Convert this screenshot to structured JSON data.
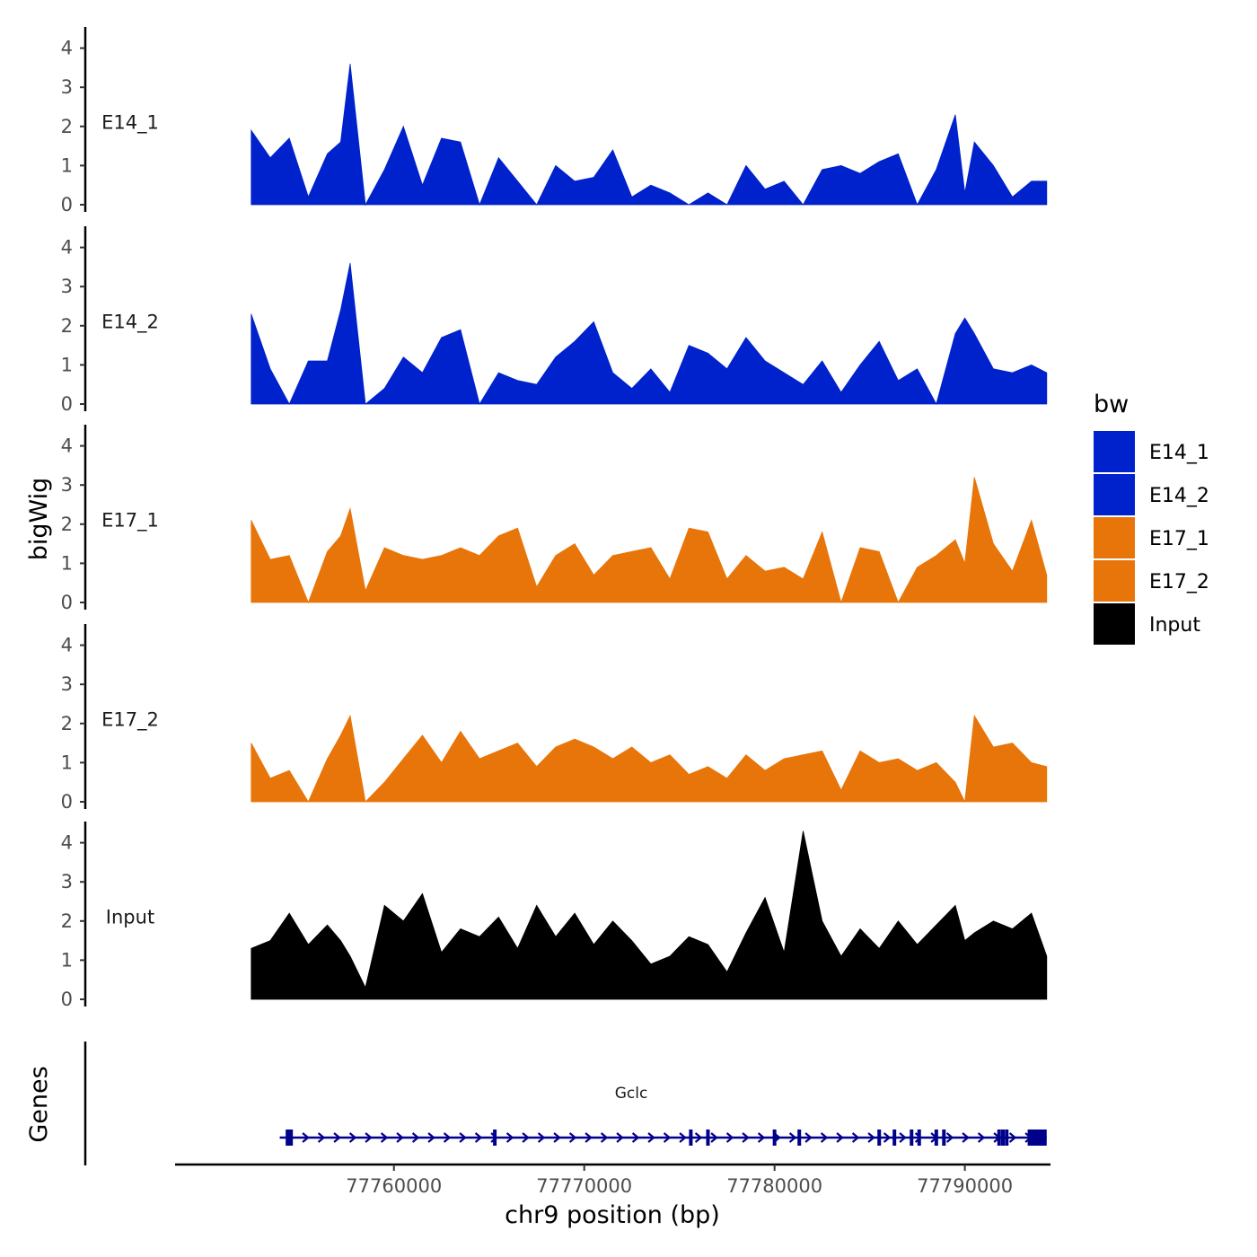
{
  "chart_data": {
    "type": "area",
    "title": "",
    "xlabel": "chr9 position (bp)",
    "ylabel": "bigWig",
    "genes_label": "Genes",
    "x_range": [
      77748500,
      77794500
    ],
    "x_ticks": [
      77760000,
      77770000,
      77780000,
      77790000
    ],
    "x_tick_labels": [
      "77760000",
      "77770000",
      "77780000",
      "77790000"
    ],
    "ylim": [
      0,
      4.5
    ],
    "y_ticks": [
      0,
      1,
      2,
      3,
      4
    ],
    "y_tick_labels": [
      "0",
      "1",
      "2",
      "3",
      "4"
    ],
    "region": [
      77752500,
      77794300
    ],
    "legend": {
      "title": "bw",
      "position": "right",
      "entries": [
        {
          "label": "E14_1",
          "color": "#0022CC"
        },
        {
          "label": "E14_2",
          "color": "#0022CC"
        },
        {
          "label": "E17_1",
          "color": "#E8750A"
        },
        {
          "label": "E17_2",
          "color": "#E8750A"
        },
        {
          "label": "Input",
          "color": "#000000"
        }
      ]
    },
    "series": [
      {
        "name": "E14_1",
        "color": "#0022CC",
        "x": [
          77752500,
          77753500,
          77754500,
          77755500,
          77756500,
          77757200,
          77757700,
          77758500,
          77759500,
          77760500,
          77761500,
          77762500,
          77763500,
          77764500,
          77765500,
          77766500,
          77767500,
          77768500,
          77769500,
          77770500,
          77771500,
          77772500,
          77773500,
          77774500,
          77775500,
          77776500,
          77777500,
          77778500,
          77779500,
          77780500,
          77781500,
          77782500,
          77783500,
          77784500,
          77785500,
          77786500,
          77787500,
          77788500,
          77789500,
          77790000,
          77790500,
          77791500,
          77792500,
          77793500,
          77794300
        ],
        "values": [
          1.9,
          1.2,
          1.7,
          0.2,
          1.3,
          1.6,
          3.6,
          0.0,
          0.9,
          2.0,
          0.5,
          1.7,
          1.6,
          0.0,
          1.2,
          0.6,
          0.0,
          1.0,
          0.6,
          0.7,
          1.4,
          0.2,
          0.5,
          0.3,
          0.0,
          0.3,
          0.0,
          1.0,
          0.4,
          0.6,
          0.0,
          0.9,
          1.0,
          0.8,
          1.1,
          1.3,
          0.0,
          0.9,
          2.3,
          0.3,
          1.6,
          1.0,
          0.2,
          0.6,
          0.6
        ]
      },
      {
        "name": "E14_2",
        "color": "#0022CC",
        "x": [
          77752500,
          77753500,
          77754500,
          77755500,
          77756500,
          77757200,
          77757700,
          77758500,
          77759500,
          77760500,
          77761500,
          77762500,
          77763500,
          77764500,
          77765500,
          77766500,
          77767500,
          77768500,
          77769500,
          77770500,
          77771500,
          77772500,
          77773500,
          77774500,
          77775500,
          77776500,
          77777500,
          77778500,
          77779500,
          77780500,
          77781500,
          77782500,
          77783500,
          77784500,
          77785500,
          77786500,
          77787500,
          77788500,
          77789500,
          77790000,
          77790500,
          77791500,
          77792500,
          77793500,
          77794300
        ],
        "values": [
          2.3,
          0.9,
          0.0,
          1.1,
          1.1,
          2.4,
          3.6,
          0.0,
          0.4,
          1.2,
          0.8,
          1.7,
          1.9,
          0.0,
          0.8,
          0.6,
          0.5,
          1.2,
          1.6,
          2.1,
          0.8,
          0.4,
          0.9,
          0.3,
          1.5,
          1.3,
          0.9,
          1.7,
          1.1,
          0.8,
          0.5,
          1.1,
          0.3,
          1.0,
          1.6,
          0.6,
          0.9,
          0.0,
          1.8,
          2.2,
          1.8,
          0.9,
          0.8,
          1.0,
          0.8
        ]
      },
      {
        "name": "E17_1",
        "color": "#E8750A",
        "x": [
          77752500,
          77753500,
          77754500,
          77755500,
          77756500,
          77757200,
          77757700,
          77758500,
          77759500,
          77760500,
          77761500,
          77762500,
          77763500,
          77764500,
          77765500,
          77766500,
          77767500,
          77768500,
          77769500,
          77770500,
          77771500,
          77772500,
          77773500,
          77774500,
          77775500,
          77776500,
          77777500,
          77778500,
          77779500,
          77780500,
          77781500,
          77782500,
          77783500,
          77784500,
          77785500,
          77786500,
          77787500,
          77788500,
          77789500,
          77790000,
          77790500,
          77791500,
          77792500,
          77793500,
          77794300
        ],
        "values": [
          2.1,
          1.1,
          1.2,
          0.0,
          1.3,
          1.7,
          2.4,
          0.3,
          1.4,
          1.2,
          1.1,
          1.2,
          1.4,
          1.2,
          1.7,
          1.9,
          0.4,
          1.2,
          1.5,
          0.7,
          1.2,
          1.3,
          1.4,
          0.6,
          1.9,
          1.8,
          0.6,
          1.2,
          0.8,
          0.9,
          0.6,
          1.8,
          0.0,
          1.4,
          1.3,
          0.0,
          0.9,
          1.2,
          1.6,
          1.0,
          3.2,
          1.5,
          0.8,
          2.1,
          0.7
        ]
      },
      {
        "name": "E17_2",
        "color": "#E8750A",
        "x": [
          77752500,
          77753500,
          77754500,
          77755500,
          77756500,
          77757200,
          77757700,
          77758500,
          77759500,
          77760500,
          77761500,
          77762500,
          77763500,
          77764500,
          77765500,
          77766500,
          77767500,
          77768500,
          77769500,
          77770500,
          77771500,
          77772500,
          77773500,
          77774500,
          77775500,
          77776500,
          77777500,
          77778500,
          77779500,
          77780500,
          77781500,
          77782500,
          77783500,
          77784500,
          77785500,
          77786500,
          77787500,
          77788500,
          77789500,
          77790000,
          77790500,
          77791500,
          77792500,
          77793500,
          77794300
        ],
        "values": [
          1.5,
          0.6,
          0.8,
          0.0,
          1.1,
          1.7,
          2.2,
          0.0,
          0.5,
          1.1,
          1.7,
          1.0,
          1.8,
          1.1,
          1.3,
          1.5,
          0.9,
          1.4,
          1.6,
          1.4,
          1.1,
          1.4,
          1.0,
          1.2,
          0.7,
          0.9,
          0.6,
          1.2,
          0.8,
          1.1,
          1.2,
          1.3,
          0.3,
          1.3,
          1.0,
          1.1,
          0.8,
          1.0,
          0.5,
          0.0,
          2.2,
          1.4,
          1.5,
          1.0,
          0.9
        ]
      },
      {
        "name": "Input",
        "color": "#000000",
        "x": [
          77752500,
          77753500,
          77754500,
          77755500,
          77756500,
          77757200,
          77757700,
          77758500,
          77759500,
          77760500,
          77761500,
          77762500,
          77763500,
          77764500,
          77765500,
          77766500,
          77767500,
          77768500,
          77769500,
          77770500,
          77771500,
          77772500,
          77773500,
          77774500,
          77775500,
          77776500,
          77777500,
          77778500,
          77779500,
          77780500,
          77781500,
          77782500,
          77783500,
          77784500,
          77785500,
          77786500,
          77787500,
          77788500,
          77789500,
          77790000,
          77790500,
          77791500,
          77792500,
          77793500,
          77794300
        ],
        "values": [
          1.3,
          1.5,
          2.2,
          1.4,
          1.9,
          1.5,
          1.1,
          0.3,
          2.4,
          2.0,
          2.7,
          1.2,
          1.8,
          1.6,
          2.1,
          1.3,
          2.4,
          1.6,
          2.2,
          1.4,
          2.0,
          1.5,
          0.9,
          1.1,
          1.6,
          1.4,
          0.7,
          1.7,
          2.6,
          1.2,
          4.3,
          2.0,
          1.1,
          1.8,
          1.3,
          2.0,
          1.4,
          1.9,
          2.4,
          1.5,
          1.7,
          2.0,
          1.8,
          2.2,
          1.1
        ]
      }
    ],
    "gene": {
      "name": "Gclc",
      "color": "#00008B",
      "strand": "+",
      "start": 77754000,
      "end": 77794300,
      "exons": [
        77754500,
        77765300,
        77775600,
        77776500,
        77780000,
        77781300,
        77785500,
        77786300,
        77787200,
        77787600,
        77788500,
        77788900,
        77791800,
        77792000,
        77792200
      ],
      "last_exon": [
        77793300,
        77794300
      ]
    }
  }
}
